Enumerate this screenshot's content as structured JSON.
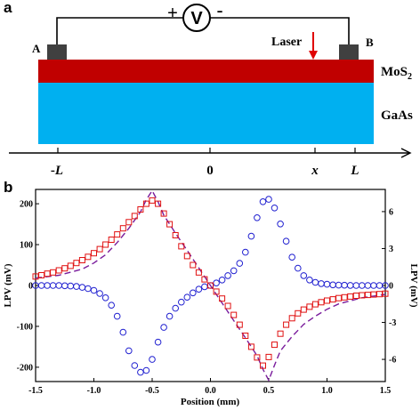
{
  "panel_a": {
    "panel_label": "a",
    "voltmeter": {
      "symbol": "V",
      "plus": "+",
      "minus": "-"
    },
    "electrode_a": "A",
    "electrode_b": "B",
    "laser_label": "Laser",
    "mos2_label_main": "MoS",
    "mos2_label_sub": "2",
    "gaas_label": "GaAs",
    "axis_ticks": {
      "neg_l_sign": "-",
      "neg_l_letter": "L",
      "zero": "0",
      "x": "x",
      "l": "L"
    },
    "colors": {
      "mos2": "#c00000",
      "gaas": "#00b0f0",
      "electrode": "#404040",
      "laser_arrow": "#e00000"
    }
  },
  "panel_b": {
    "panel_label": "b"
  },
  "chart_data": {
    "type": "scatter",
    "xlabel": "Position (mm)",
    "ylabel_left": "LPV (mV)",
    "ylabel_right": "LPV (mV)",
    "xlim": [
      -1.5,
      1.5
    ],
    "ylim_left": [
      -235,
      235
    ],
    "ylim_right": [
      -7.8,
      7.8
    ],
    "x_ticks": [
      "-1.5",
      "-1.0",
      "-0.5",
      "0.0",
      "0.5",
      "1.0",
      "1.5"
    ],
    "y_ticks_left": [
      "-200",
      "-100",
      "0",
      "100",
      "200"
    ],
    "y_ticks_right": [
      "-6",
      "-3",
      "0",
      "3",
      "6"
    ],
    "grid": false,
    "x": [
      -1.5,
      -1.45,
      -1.4,
      -1.35,
      -1.3,
      -1.25,
      -1.2,
      -1.15,
      -1.1,
      -1.05,
      -1.0,
      -0.95,
      -0.9,
      -0.85,
      -0.8,
      -0.75,
      -0.7,
      -0.65,
      -0.6,
      -0.55,
      -0.5,
      -0.45,
      -0.4,
      -0.35,
      -0.3,
      -0.25,
      -0.2,
      -0.15,
      -0.1,
      -0.05,
      0.0,
      0.05,
      0.1,
      0.15,
      0.2,
      0.25,
      0.3,
      0.35,
      0.4,
      0.45,
      0.5,
      0.55,
      0.6,
      0.65,
      0.7,
      0.75,
      0.8,
      0.85,
      0.9,
      0.95,
      1.0,
      1.05,
      1.1,
      1.15,
      1.2,
      1.25,
      1.3,
      1.35,
      1.4,
      1.45,
      1.5
    ],
    "series": [
      {
        "axis": "left",
        "marker": "square",
        "color": "#e01010",
        "values": [
          22,
          25,
          29,
          32,
          37,
          42,
          48,
          55,
          62,
          70,
          79,
          89,
          100,
          112,
          125,
          140,
          155,
          170,
          186,
          200,
          208,
          200,
          176,
          150,
          123,
          96,
          72,
          50,
          32,
          15,
          0,
          -15,
          -32,
          -50,
          -72,
          -96,
          -123,
          -150,
          -176,
          -196,
          -175,
          -145,
          -118,
          -96,
          -80,
          -68,
          -59,
          -52,
          -46,
          -41,
          -37,
          -34,
          -31,
          -29,
          -27,
          -25,
          -24,
          -23,
          -22,
          -21,
          -20
        ]
      },
      {
        "axis": "right",
        "marker": "circle",
        "color": "#2020d0",
        "values": [
          0.0,
          0.0,
          0.0,
          0.0,
          0.0,
          -0.02,
          -0.04,
          -0.08,
          -0.15,
          -0.25,
          -0.4,
          -0.65,
          -1.0,
          -1.6,
          -2.5,
          -3.8,
          -5.3,
          -6.5,
          -7.05,
          -6.9,
          -6.0,
          -4.6,
          -3.4,
          -2.5,
          -1.85,
          -1.35,
          -0.95,
          -0.6,
          -0.3,
          -0.1,
          0.0,
          0.2,
          0.45,
          0.8,
          1.2,
          1.8,
          2.7,
          4.0,
          5.5,
          6.8,
          7.0,
          6.3,
          5.0,
          3.6,
          2.3,
          1.4,
          0.8,
          0.45,
          0.25,
          0.15,
          0.1,
          0.05,
          0.03,
          0.02,
          0.01,
          0.0,
          0.0,
          0.0,
          0.0,
          0.0,
          0.0
        ]
      },
      {
        "axis": "left",
        "marker": "dashed-line",
        "color": "#7a1c9c",
        "x": [
          -1.5,
          -1.3,
          -1.1,
          -1.0,
          -0.9,
          -0.8,
          -0.7,
          -0.6,
          -0.55,
          -0.5,
          -0.45,
          -0.4,
          -0.3,
          -0.2,
          -0.1,
          0.0,
          0.1,
          0.2,
          0.3,
          0.4,
          0.45,
          0.5,
          0.55,
          0.6,
          0.7,
          0.8,
          0.9,
          1.0,
          1.1,
          1.3,
          1.5
        ],
        "values": [
          18,
          25,
          40,
          55,
          75,
          105,
          140,
          180,
          210,
          232,
          205,
          172,
          128,
          86,
          43,
          0,
          -43,
          -86,
          -128,
          -172,
          -205,
          -232,
          -195,
          -160,
          -125,
          -95,
          -75,
          -58,
          -45,
          -30,
          -22
        ]
      }
    ]
  }
}
